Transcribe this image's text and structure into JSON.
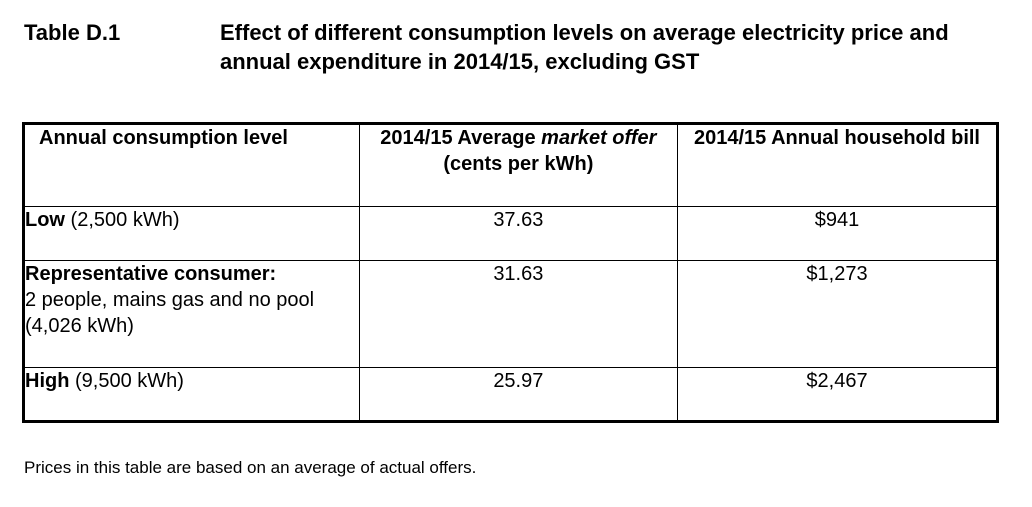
{
  "caption": {
    "label": "Table D.1",
    "title": "Effect of different consumption levels on average electricity price and annual expenditure in 2014/15, excluding GST"
  },
  "table": {
    "headers": {
      "col1": "Annual consumption level",
      "col2_part1": "2014/15 Average ",
      "col2_italic": "market offer",
      "col2_part2": " (cents per kWh)",
      "col3": "2014/15 Annual household bill"
    },
    "rows": [
      {
        "label_bold": "Low",
        "label_rest": " (2,500 kWh)",
        "price": "37.63",
        "bill": "$941"
      },
      {
        "label_bold": "Representative consumer:",
        "label_rest": "2 people, mains gas and no pool (4,026 kWh)",
        "price": "31.63",
        "bill": "$1,273"
      },
      {
        "label_bold": "High",
        "label_rest": " (9,500 kWh)",
        "price": "25.97",
        "bill": "$2,467"
      }
    ]
  },
  "note": "Prices in this table are based on an average of actual offers."
}
